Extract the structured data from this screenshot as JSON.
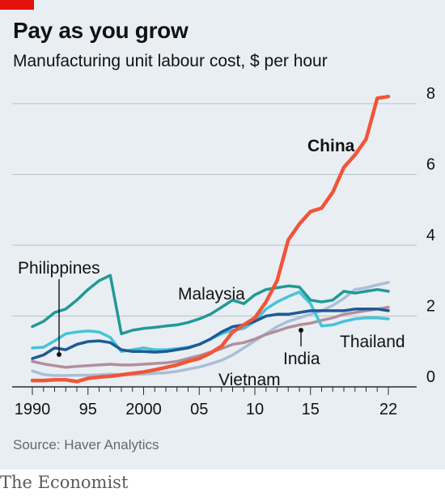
{
  "header": {
    "title": "Pay as you grow",
    "subtitle": "Manufacturing unit labour cost, $ per hour"
  },
  "footer": {
    "source": "Source: Haver Analytics",
    "brand": "The Economist"
  },
  "colors": {
    "background": "#e9eef2",
    "accent_red": "#e3120b",
    "China": "#f0553a",
    "Malaysia": "#1f9a96",
    "Philippines": "#1e5a96",
    "Thailand": "#45c3d9",
    "India": "#b08f9e",
    "Vietnam": "#a8bfd8",
    "gridline": "#b8c2ca",
    "text": "#121212"
  },
  "chart_data": {
    "type": "line",
    "ylim": [
      0,
      8.4
    ],
    "xlim": [
      1989.5,
      2023.5
    ],
    "x_tick_labels": [
      "1990",
      "95",
      "2000",
      "05",
      "10",
      "15",
      "22"
    ],
    "x_tick_values": [
      1990,
      1995,
      2000,
      2005,
      2010,
      2015,
      2022
    ],
    "y_ticks": [
      "0",
      "2",
      "4",
      "6",
      "8"
    ],
    "y_tick_values": [
      0,
      2,
      4,
      6,
      8
    ],
    "gridlines": true,
    "series": [
      {
        "name": "Vietnam",
        "x": [
          1990,
          1991,
          1992,
          1993,
          1994,
          1995,
          1996,
          1997,
          1998,
          1999,
          2000,
          2001,
          2002,
          2003,
          2004,
          2005,
          2006,
          2007,
          2008,
          2009,
          2010,
          2011,
          2012,
          2013,
          2014,
          2015,
          2016,
          2017,
          2018,
          2019,
          2020,
          2021,
          2022
        ],
        "y": [
          0.45,
          0.35,
          0.32,
          0.32,
          0.33,
          0.33,
          0.34,
          0.36,
          0.34,
          0.35,
          0.36,
          0.38,
          0.4,
          0.44,
          0.5,
          0.56,
          0.65,
          0.75,
          0.9,
          1.1,
          1.3,
          1.5,
          1.7,
          1.85,
          1.95,
          2.05,
          2.15,
          2.3,
          2.5,
          2.75,
          2.8,
          2.88,
          2.95
        ]
      },
      {
        "name": "India",
        "x": [
          1990,
          1991,
          1992,
          1993,
          1994,
          1995,
          1996,
          1997,
          1998,
          1999,
          2000,
          2001,
          2002,
          2003,
          2004,
          2005,
          2006,
          2007,
          2008,
          2009,
          2010,
          2011,
          2012,
          2013,
          2014,
          2015,
          2016,
          2017,
          2018,
          2019,
          2020,
          2021,
          2022
        ],
        "y": [
          0.72,
          0.65,
          0.6,
          0.55,
          0.58,
          0.6,
          0.62,
          0.64,
          0.62,
          0.62,
          0.64,
          0.66,
          0.68,
          0.72,
          0.8,
          0.88,
          0.98,
          1.08,
          1.2,
          1.25,
          1.35,
          1.48,
          1.58,
          1.68,
          1.75,
          1.8,
          1.88,
          1.95,
          2.05,
          2.1,
          2.15,
          2.2,
          2.25
        ]
      },
      {
        "name": "Thailand",
        "x": [
          1990,
          1991,
          1992,
          1993,
          1994,
          1995,
          1996,
          1997,
          1998,
          1999,
          2000,
          2001,
          2002,
          2003,
          2004,
          2005,
          2006,
          2007,
          2008,
          2009,
          2010,
          2011,
          2012,
          2013,
          2014,
          2015,
          2016,
          2017,
          2018,
          2019,
          2020,
          2021,
          2022
        ],
        "y": [
          1.1,
          1.12,
          1.3,
          1.5,
          1.55,
          1.58,
          1.55,
          1.4,
          1.0,
          1.05,
          1.1,
          1.05,
          1.05,
          1.08,
          1.12,
          1.2,
          1.35,
          1.5,
          1.6,
          1.65,
          1.85,
          2.2,
          2.4,
          2.55,
          2.68,
          2.35,
          1.72,
          1.75,
          1.85,
          1.92,
          1.95,
          1.95,
          1.92
        ]
      },
      {
        "name": "Philippines",
        "x": [
          1990,
          1991,
          1992,
          1993,
          1994,
          1995,
          1996,
          1997,
          1998,
          1999,
          2000,
          2001,
          2002,
          2003,
          2004,
          2005,
          2006,
          2007,
          2008,
          2009,
          2010,
          2011,
          2012,
          2013,
          2014,
          2015,
          2016,
          2017,
          2018,
          2019,
          2020,
          2021,
          2022
        ],
        "y": [
          0.8,
          0.9,
          1.1,
          1.05,
          1.2,
          1.28,
          1.3,
          1.25,
          1.05,
          1.0,
          1.0,
          0.98,
          1.0,
          1.05,
          1.1,
          1.2,
          1.35,
          1.55,
          1.7,
          1.75,
          1.85,
          2.0,
          2.05,
          2.05,
          2.1,
          2.15,
          2.15,
          2.15,
          2.15,
          2.2,
          2.2,
          2.2,
          2.15
        ]
      },
      {
        "name": "Malaysia",
        "x": [
          1990,
          1991,
          1992,
          1993,
          1994,
          1995,
          1996,
          1997,
          1998,
          1999,
          2000,
          2001,
          2002,
          2003,
          2004,
          2005,
          2006,
          2007,
          2008,
          2009,
          2010,
          2011,
          2012,
          2013,
          2014,
          2015,
          2016,
          2017,
          2018,
          2019,
          2020,
          2021,
          2022
        ],
        "y": [
          1.7,
          1.85,
          2.1,
          2.2,
          2.45,
          2.75,
          3.0,
          3.15,
          1.5,
          1.6,
          1.65,
          1.68,
          1.72,
          1.75,
          1.82,
          1.92,
          2.05,
          2.25,
          2.45,
          2.35,
          2.6,
          2.75,
          2.8,
          2.85,
          2.82,
          2.45,
          2.4,
          2.45,
          2.7,
          2.65,
          2.7,
          2.75,
          2.7
        ]
      },
      {
        "name": "China",
        "x": [
          1990,
          1991,
          1992,
          1993,
          1994,
          1995,
          1996,
          1997,
          1998,
          1999,
          2000,
          2001,
          2002,
          2003,
          2004,
          2005,
          2006,
          2007,
          2008,
          2009,
          2010,
          2011,
          2012,
          2013,
          2014,
          2015,
          2016,
          2017,
          2018,
          2019,
          2020,
          2021,
          2022
        ],
        "y": [
          0.18,
          0.18,
          0.2,
          0.2,
          0.15,
          0.24,
          0.28,
          0.3,
          0.34,
          0.38,
          0.42,
          0.48,
          0.55,
          0.62,
          0.72,
          0.8,
          0.95,
          1.15,
          1.55,
          1.75,
          1.95,
          2.4,
          3.0,
          4.15,
          4.6,
          4.95,
          5.05,
          5.5,
          6.2,
          6.55,
          7.0,
          8.15,
          8.2
        ]
      }
    ],
    "labels": [
      {
        "series": "China",
        "text": "China"
      },
      {
        "series": "Malaysia",
        "text": "Malaysia"
      },
      {
        "series": "Philippines",
        "text": "Philippines"
      },
      {
        "series": "Thailand",
        "text": "Thailand"
      },
      {
        "series": "India",
        "text": "India"
      },
      {
        "series": "Vietnam",
        "text": "Vietnam"
      }
    ]
  }
}
